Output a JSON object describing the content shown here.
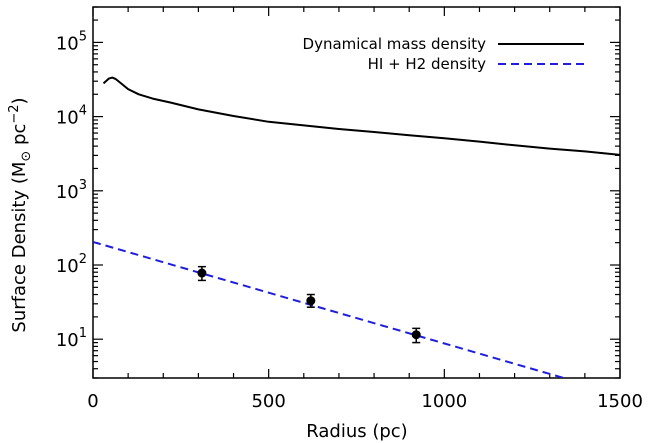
{
  "chart_data": {
    "type": "line",
    "xlabel": "Radius (pc)",
    "ylabel_main": "Surface Density (M",
    "ylabel_sun": "⊙",
    "ylabel_unit": " pc",
    "ylabel_exp": "−2",
    "ylabel_close": ")",
    "xlim": [
      0,
      1500
    ],
    "ylim": [
      3,
      300000
    ],
    "yscale": "log",
    "xticks": [
      0,
      500,
      1000,
      1500
    ],
    "xtick_labels": [
      "0",
      "500",
      "1000",
      "1500"
    ],
    "yticks": [
      10,
      100,
      1000,
      10000,
      100000
    ],
    "ytick_base": "10",
    "ytick_exps": [
      "1",
      "2",
      "3",
      "4",
      "5"
    ],
    "legend_position": "top-right",
    "series": [
      {
        "name": "Dynamical mass density",
        "style": "solid",
        "color": "#000000",
        "x": [
          30,
          45,
          55,
          65,
          80,
          100,
          130,
          170,
          220,
          300,
          400,
          500,
          600,
          700,
          800,
          900,
          1000,
          1100,
          1200,
          1300,
          1400,
          1500
        ],
        "y": [
          28000,
          32500,
          33500,
          32000,
          28000,
          23500,
          20000,
          17500,
          15500,
          12500,
          10200,
          8500,
          7600,
          6800,
          6200,
          5600,
          5100,
          4600,
          4100,
          3700,
          3400,
          3050
        ]
      },
      {
        "name": "HI + H2 density",
        "style": "dashed",
        "color": "#1f1fdd",
        "x": [
          0,
          1340
        ],
        "y": [
          205,
          3
        ]
      },
      {
        "name": "",
        "style": "points",
        "color": "#000000",
        "x": [
          310,
          620,
          920
        ],
        "y": [
          78,
          33,
          11.5
        ],
        "yerr_low": [
          62,
          27,
          9
        ],
        "yerr_high": [
          95,
          40,
          14
        ]
      }
    ]
  }
}
